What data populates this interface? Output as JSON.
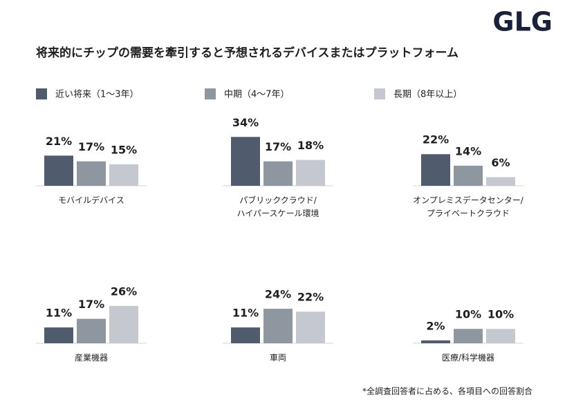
{
  "logo": "GLG",
  "title": "将来的にチップの需要を牽引すると予想されるデバイスまたはプラットフォーム",
  "footnote": "*全調査回答者に占める、各項目への回答割合",
  "chart_data": {
    "type": "bar",
    "categories": [
      "モバイルデバイス",
      "パブリッククラウド/\nハイパースケール環境",
      "オンプレミスデータセンター/\nプライベートクラウド",
      "産業機器",
      "車両",
      "医療/科学機器"
    ],
    "series": [
      {
        "name": "近い将来（1〜3年）",
        "color": "#505b6e",
        "values": [
          21,
          34,
          22,
          11,
          11,
          2
        ],
        "value_labels": [
          "21%",
          "34%",
          "22%",
          "11%",
          "11%",
          "2%"
        ]
      },
      {
        "name": "中期（4〜7年）",
        "color": "#8e96a0",
        "values": [
          17,
          17,
          14,
          17,
          24,
          10
        ],
        "value_labels": [
          "17%",
          "17%",
          "14%",
          "17%",
          "24%",
          "10%"
        ]
      },
      {
        "name": "長期（8年以上）",
        "color": "#c5c9cf",
        "values": [
          15,
          18,
          6,
          26,
          22,
          10
        ],
        "value_labels": [
          "15%",
          "18%",
          "6%",
          "26%",
          "22%",
          "10%"
        ]
      }
    ]
  }
}
